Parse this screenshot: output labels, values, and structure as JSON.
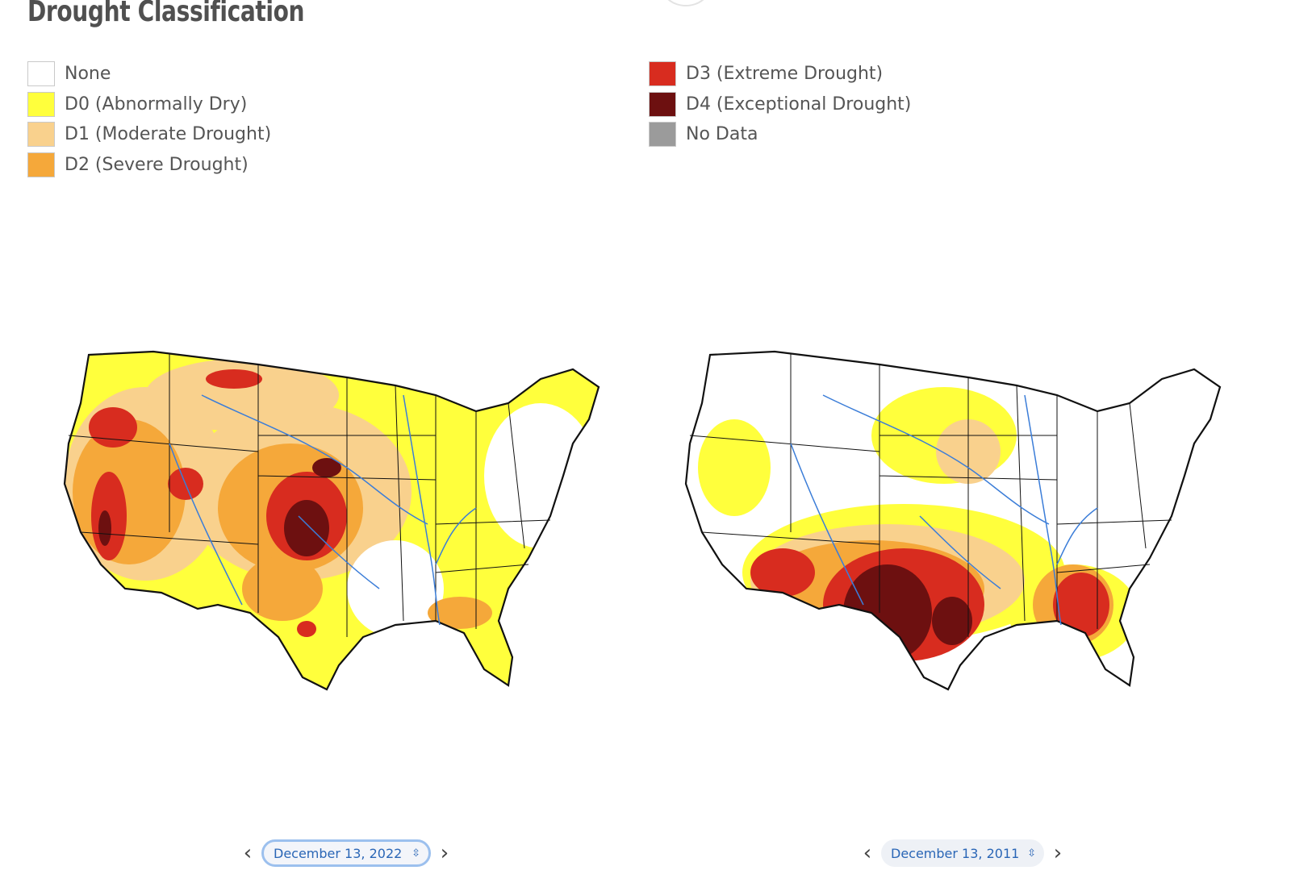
{
  "page": {
    "title": "Drought Classification"
  },
  "legend": {
    "column_1": [
      {
        "label": "None",
        "color": "#ffffff"
      },
      {
        "label": "D0 (Abnormally Dry)",
        "color": "#ffff3c"
      },
      {
        "label": "D1 (Moderate Drought)",
        "color": "#f9d18d"
      },
      {
        "label": "D2 (Severe Drought)",
        "color": "#f5a83a"
      }
    ],
    "column_2": [
      {
        "label": "D3 (Extreme Drought)",
        "color": "#d82c1f"
      },
      {
        "label": "D4 (Exceptional Drought)",
        "color": "#6d1010"
      },
      {
        "label": "No Data",
        "color": "#9b9b9b"
      }
    ]
  },
  "maps": {
    "left": {
      "date_label": "December 13, 2022",
      "date_select_state": "focused",
      "predominant_categories": [
        "D0",
        "D1",
        "D2",
        "D3",
        "D4"
      ]
    },
    "right": {
      "date_label": "December 13, 2011",
      "date_select_state": "default",
      "predominant_categories": [
        "None",
        "D0",
        "D1",
        "D2",
        "D3",
        "D4"
      ]
    }
  },
  "controls": {
    "prev_icon": "chevron-left-icon",
    "next_icon": "chevron-right-icon",
    "select_icon": "up-down-arrows-icon",
    "prev_glyph": "‹",
    "next_glyph": "›",
    "spin_glyph": "⇳"
  },
  "colors": {
    "river": "#3b7dd8",
    "border": "#111111",
    "date_text": "#2a66b6"
  }
}
